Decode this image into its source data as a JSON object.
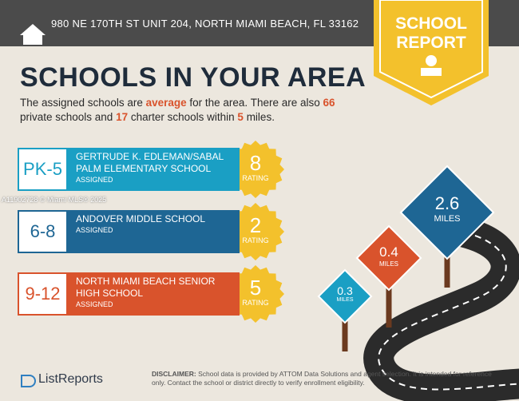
{
  "header": {
    "address": "980 NE 170TH ST UNIT 204, NORTH MIAMI BEACH, FL 33162"
  },
  "badge": {
    "line1": "SCHOOL",
    "line2": "REPORT"
  },
  "title": "SCHOOLS IN YOUR AREA",
  "intro": [
    "The assigned schools are ",
    "average",
    " for the area. There are also ",
    "66",
    " private schools and ",
    "17",
    " charter schools within ",
    "5",
    " miles."
  ],
  "schools": [
    {
      "grades": "PK-5",
      "name": "GERTRUDE K. EDLEMAN/SABAL PALM ELEMENTARY SCHOOL",
      "status": "ASSIGNED",
      "rating": "8",
      "rating_label": "RATING"
    },
    {
      "grades": "6-8",
      "name": "ANDOVER MIDDLE SCHOOL",
      "status": "ASSIGNED",
      "rating": "2",
      "rating_label": "RATING"
    },
    {
      "grades": "9-12",
      "name": "NORTH MIAMI BEACH SENIOR HIGH SCHOOL",
      "status": "ASSIGNED",
      "rating": "5",
      "rating_label": "RATING"
    }
  ],
  "watermark": "A11902728 © Miami MLS® 2025",
  "signs": [
    {
      "distance": "0.3",
      "unit": "MILES"
    },
    {
      "distance": "0.4",
      "unit": "MILES"
    },
    {
      "distance": "2.6",
      "unit": "MILES"
    }
  ],
  "footer": {
    "brand": "ListReports",
    "disclaimer_label": "DISCLAIMER:",
    "disclaimer": "School data is provided by ATTOM Data Solutions and agent selection. It is intended for reference only. Contact the school or district directly to verify enrollment eligibility."
  }
}
